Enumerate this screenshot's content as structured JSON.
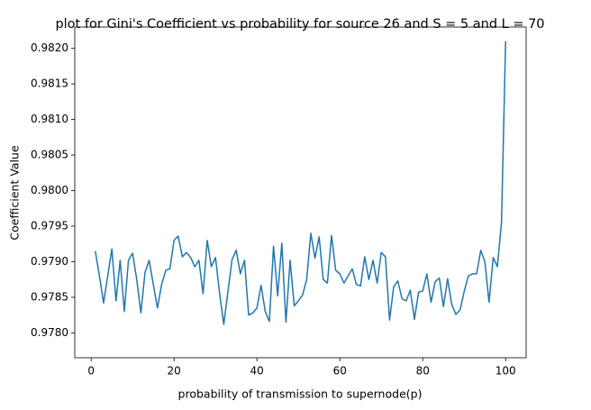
{
  "chart_data": {
    "type": "line",
    "title": "plot for Gini's Coefficient vs probability for source 26 and S = 5 and L = 70",
    "x_label": "probability of transmission to supernode(p)",
    "y_label": "Coefficient Value",
    "x": [
      1,
      2,
      3,
      4,
      5,
      6,
      7,
      8,
      9,
      10,
      11,
      12,
      13,
      14,
      15,
      16,
      17,
      18,
      19,
      20,
      21,
      22,
      23,
      24,
      25,
      26,
      27,
      28,
      29,
      30,
      31,
      32,
      33,
      34,
      35,
      36,
      37,
      38,
      39,
      40,
      41,
      42,
      43,
      44,
      45,
      46,
      47,
      48,
      49,
      50,
      51,
      52,
      53,
      54,
      55,
      56,
      57,
      58,
      59,
      60,
      61,
      62,
      63,
      64,
      65,
      66,
      67,
      68,
      69,
      70,
      71,
      72,
      73,
      74,
      75,
      76,
      77,
      78,
      79,
      80,
      81,
      82,
      83,
      84,
      85,
      86,
      87,
      88,
      89,
      90,
      91,
      92,
      93,
      94,
      95,
      96,
      97,
      98,
      99,
      100
    ],
    "series": [
      {
        "color": "#1f77b4",
        "values": [
          0.97915,
          0.9788,
          0.97842,
          0.9788,
          0.97918,
          0.97845,
          0.97902,
          0.9783,
          0.97902,
          0.97912,
          0.97875,
          0.97828,
          0.97885,
          0.97902,
          0.97868,
          0.97835,
          0.97868,
          0.97888,
          0.9789,
          0.9793,
          0.97936,
          0.97907,
          0.97913,
          0.97906,
          0.97893,
          0.97902,
          0.97855,
          0.9793,
          0.97893,
          0.97906,
          0.97855,
          0.97812,
          0.97858,
          0.97903,
          0.97916,
          0.97883,
          0.97902,
          0.97825,
          0.97828,
          0.97835,
          0.97867,
          0.9783,
          0.97816,
          0.97922,
          0.97852,
          0.97926,
          0.97815,
          0.97902,
          0.97838,
          0.97845,
          0.97853,
          0.97875,
          0.9794,
          0.97905,
          0.97935,
          0.97875,
          0.9787,
          0.97937,
          0.97888,
          0.97883,
          0.9787,
          0.9788,
          0.9789,
          0.97868,
          0.97866,
          0.97907,
          0.97875,
          0.97902,
          0.9787,
          0.97913,
          0.97907,
          0.97818,
          0.97865,
          0.97873,
          0.97848,
          0.97845,
          0.9786,
          0.97819,
          0.97857,
          0.97859,
          0.97883,
          0.97843,
          0.97872,
          0.97877,
          0.97837,
          0.97876,
          0.9784,
          0.97826,
          0.97832,
          0.97858,
          0.9788,
          0.97883,
          0.97883,
          0.97916,
          0.979,
          0.97843,
          0.97906,
          0.97893,
          0.97955,
          0.9821
        ]
      }
    ],
    "xlim": [
      -3.95,
      104.95
    ],
    "ylim": [
      0.97765,
      0.9823
    ],
    "xticks": [
      0,
      20,
      40,
      60,
      80,
      100
    ],
    "yticks": [
      {
        "value": 0.978,
        "label": "0.9780"
      },
      0.9785,
      {
        "value": 0.979,
        "label": "0.9790"
      },
      0.9795,
      {
        "value": 0.98,
        "label": "0.9800"
      },
      0.9805,
      {
        "value": 0.981,
        "label": "0.9810"
      },
      0.9815,
      {
        "value": 0.982,
        "label": "0.9820"
      }
    ],
    "grid": false
  }
}
